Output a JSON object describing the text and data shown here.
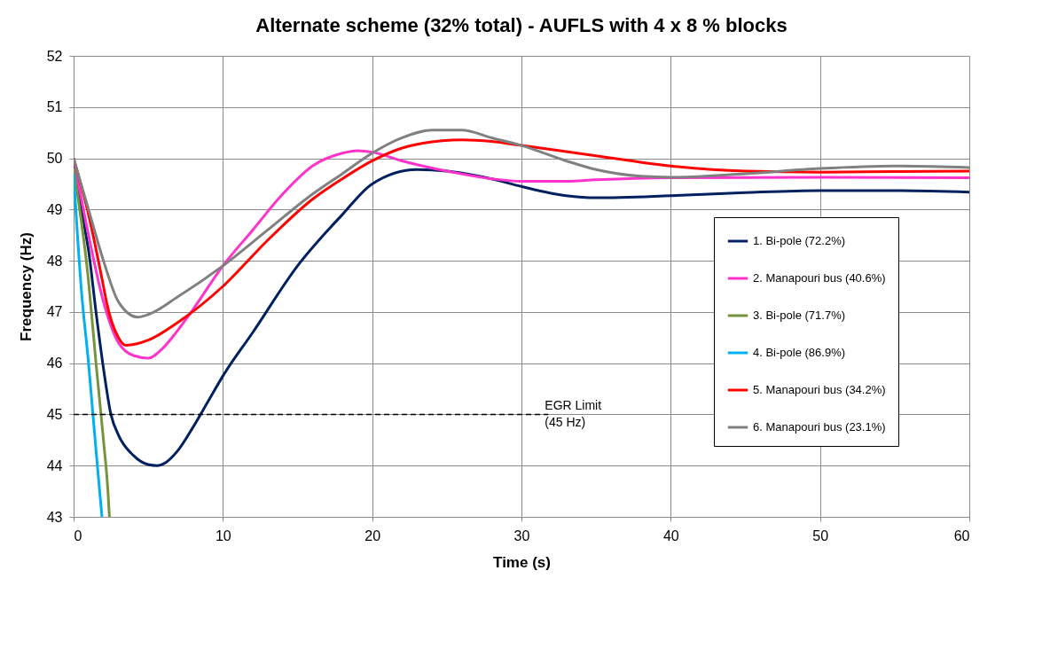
{
  "chart_data": {
    "type": "line",
    "title": "Alternate scheme (32% total) - AUFLS with 4 x 8 % blocks",
    "xlabel": "Time (s)",
    "ylabel": "Frequency (Hz)",
    "xlim": [
      0,
      60
    ],
    "xticks": [
      0,
      10,
      20,
      30,
      40,
      50,
      60
    ],
    "ylim": [
      43,
      52
    ],
    "yticks": [
      43,
      44,
      45,
      46,
      47,
      48,
      49,
      50,
      51,
      52
    ],
    "grid": true,
    "legend": "bottom right",
    "marker": "none",
    "line_style": "solid",
    "ref_lines": [
      {
        "axis": "y",
        "value": 45,
        "label": "EGR Limit\n(45 Hz)",
        "line_style": "dashed",
        "color": "#000000"
      }
    ],
    "series": [
      {
        "name": "1. Bi-pole (72.2%)",
        "color": "#002060",
        "x": [
          0,
          0.77,
          1,
          1.5,
          2,
          2.5,
          3,
          4,
          5,
          5.6,
          6,
          7,
          8,
          9,
          10,
          12,
          15,
          18,
          20,
          23,
          25,
          28,
          30,
          33,
          35,
          40,
          45,
          50,
          55,
          60
        ],
        "values": [
          50,
          48.6,
          48.2,
          47.0,
          45.9,
          45.0,
          44.6,
          44.2,
          44.02,
          44.0,
          44.03,
          44.3,
          44.75,
          45.25,
          45.75,
          46.6,
          47.9,
          48.9,
          49.5,
          49.78,
          49.75,
          49.6,
          49.45,
          49.27,
          49.23,
          49.27,
          49.33,
          49.37,
          49.37,
          49.34
        ]
      },
      {
        "name": "2. Manapouri bus (40.6%)",
        "color": "#ff33cc",
        "x": [
          0,
          1,
          2,
          3,
          4,
          5,
          6,
          7,
          8,
          10,
          12,
          14,
          16,
          18,
          19,
          20,
          22,
          25,
          28,
          30,
          33,
          35,
          40,
          50,
          60
        ],
        "values": [
          50,
          48.5,
          47.2,
          46.4,
          46.15,
          46.1,
          46.3,
          46.65,
          47.05,
          47.9,
          48.6,
          49.3,
          49.85,
          50.1,
          50.15,
          50.12,
          49.95,
          49.75,
          49.6,
          49.55,
          49.55,
          49.58,
          49.62,
          49.63,
          49.62
        ]
      },
      {
        "name": "3. Bi-pole (71.7%)",
        "color": "#77933c",
        "x": [
          0,
          1,
          1.5,
          2,
          2.3,
          2.4
        ],
        "values": [
          49.8,
          47.6,
          46.0,
          44.5,
          43.5,
          43.0
        ]
      },
      {
        "name": "4. Bi-pole (86.9%)",
        "color": "#00b0f0",
        "x": [
          0,
          0.5,
          1,
          1.5,
          1.9
        ],
        "values": [
          49.7,
          47.5,
          46.0,
          44.3,
          43.0
        ]
      },
      {
        "name": "5. Manapouri bus (34.2%)",
        "color": "#ff0000",
        "x": [
          0,
          1,
          2,
          2.2,
          3,
          3.5,
          5,
          7,
          10,
          13,
          16,
          18,
          20,
          22,
          24,
          26,
          28,
          30,
          35,
          40,
          45,
          50,
          55,
          60
        ],
        "values": [
          50,
          48.9,
          47.5,
          47.2,
          46.5,
          46.35,
          46.45,
          46.8,
          47.5,
          48.4,
          49.2,
          49.6,
          49.95,
          50.2,
          50.32,
          50.36,
          50.33,
          50.25,
          50.05,
          49.85,
          49.75,
          49.73,
          49.74,
          49.75
        ]
      },
      {
        "name": "6. Manapouri bus (23.1%)",
        "color": "#808080",
        "x": [
          0,
          1,
          2,
          3,
          4.3,
          5,
          7,
          10,
          13,
          16,
          18,
          20,
          22,
          24,
          26,
          28,
          30,
          33,
          35,
          38,
          40,
          45,
          50,
          55,
          60
        ],
        "values": [
          50,
          49.0,
          48.0,
          47.2,
          46.9,
          46.95,
          47.3,
          47.9,
          48.6,
          49.3,
          49.7,
          50.1,
          50.4,
          50.55,
          50.55,
          50.4,
          50.25,
          49.95,
          49.78,
          49.65,
          49.63,
          49.7,
          49.8,
          49.85,
          49.82
        ]
      }
    ]
  }
}
